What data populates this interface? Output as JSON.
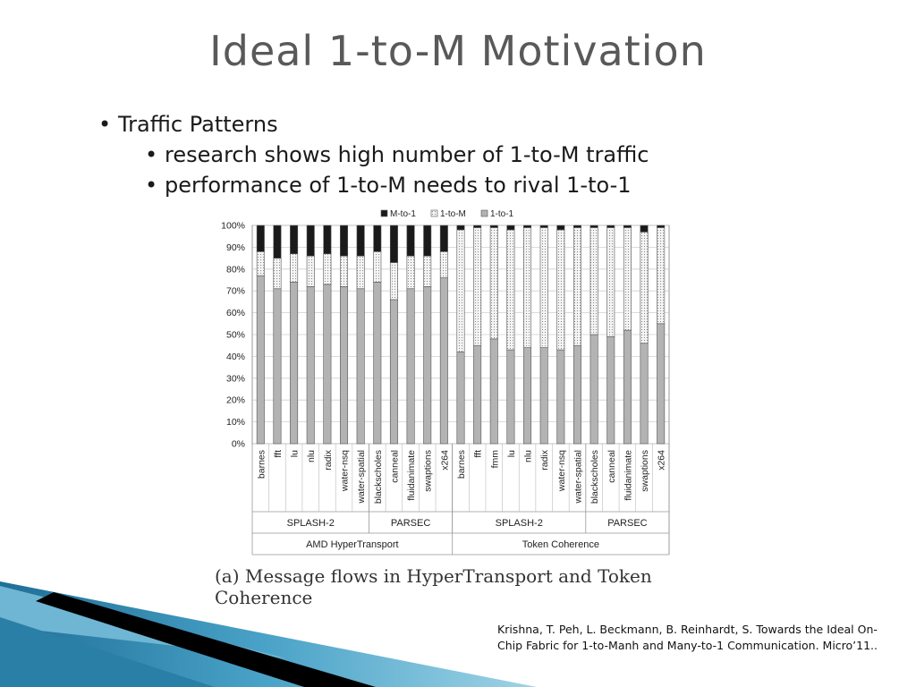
{
  "slide": {
    "title": "Ideal 1-to-M Motivation",
    "bullets": [
      {
        "text": "Traffic Patterns",
        "level": 1
      },
      {
        "text": "research shows high number of 1-to-M traffic",
        "level": 2
      },
      {
        "text": "performance of 1-to-M needs to rival 1-to-1",
        "level": 2
      }
    ],
    "caption": "(a) Message flows in HyperTransport and Token Coherence",
    "citation": "Krishna, T. Peh, L. Beckmann, B. Reinhardt, S. Towards the Ideal On-Chip Fabric for 1-to-Manh and Many-to-1 Communication. Micro’11.."
  },
  "chart_data": {
    "type": "bar",
    "stacked": true,
    "ylim": [
      0,
      100
    ],
    "yticks": [
      "0%",
      "10%",
      "20%",
      "30%",
      "40%",
      "50%",
      "60%",
      "70%",
      "80%",
      "90%",
      "100%"
    ],
    "grid": true,
    "legend_position": "top",
    "categories": [
      "barnes",
      "fft",
      "lu",
      "nlu",
      "radix",
      "water-nsq",
      "water-spatial",
      "blackscholes",
      "canneal",
      "fluidanimate",
      "swaptions",
      "x264",
      "barnes",
      "fft",
      "fmm",
      "lu",
      "nlu",
      "radix",
      "water-nsq",
      "water-spatial",
      "blackscholes",
      "canneal",
      "fluidanimate",
      "swaptions",
      "x264"
    ],
    "series": [
      {
        "name": "1-to-1",
        "color": "#b3b3b3",
        "pattern": "solid",
        "values": [
          77,
          71,
          74,
          72,
          73,
          72,
          71,
          74,
          66,
          71,
          72,
          76,
          42,
          45,
          48,
          43,
          44,
          44,
          43,
          45,
          50,
          49,
          52,
          46,
          55
        ]
      },
      {
        "name": "1-to-M",
        "color": "#eeeeee",
        "pattern": "dotted",
        "values": [
          11,
          14,
          13,
          14,
          14,
          14,
          15,
          14,
          17,
          15,
          14,
          12,
          56,
          54,
          51,
          55,
          55,
          55,
          55,
          54,
          49,
          50,
          47,
          51,
          44
        ]
      },
      {
        "name": "M-to-1",
        "color": "#1a1a1a",
        "pattern": "solid",
        "values": [
          12,
          15,
          13,
          14,
          13,
          14,
          14,
          12,
          17,
          14,
          14,
          12,
          2,
          1,
          1,
          2,
          1,
          1,
          2,
          1,
          1,
          1,
          1,
          3,
          1
        ]
      }
    ],
    "group_labels": {
      "suite": [
        {
          "label": "SPLASH-2",
          "span": 7
        },
        {
          "label": "PARSEC",
          "span": 5
        },
        {
          "label": "SPLASH-2",
          "span": 8
        },
        {
          "label": "PARSEC",
          "span": 5
        }
      ],
      "protocol": [
        {
          "label": "AMD HyperTransport",
          "span": 12
        },
        {
          "label": "Token Coherence",
          "span": 13
        }
      ]
    }
  }
}
